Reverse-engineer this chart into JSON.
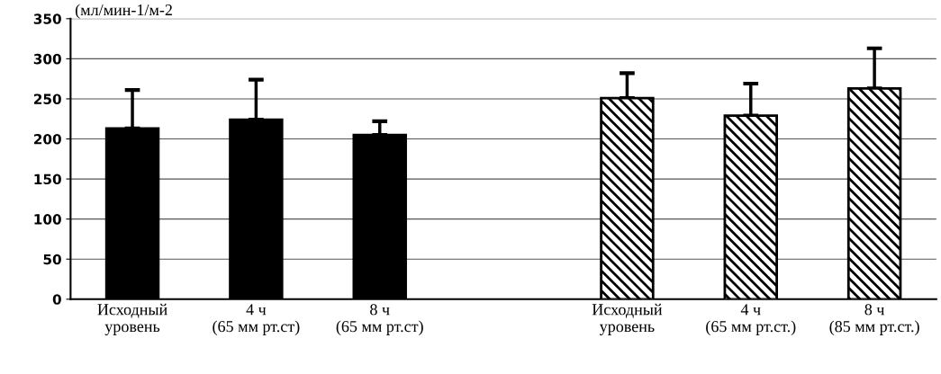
{
  "chart_data": {
    "type": "bar",
    "ylabel": "(мл/мин-1/м-2",
    "categories": [
      "Исходный\nуровень",
      "4 ч\n(65 мм рт.ст)",
      "8 ч\n(65 мм рт.ст)",
      null,
      "Исходный\nуровень",
      "4 ч\n(65 мм рт.ст.)",
      "8 ч\n(85 мм рт.ст.)"
    ],
    "series": [
      {
        "color": "#000000",
        "values": [
          213,
          224,
          205,
          null,
          null,
          null,
          null
        ],
        "errors": [
          48,
          50,
          17,
          null,
          null,
          null,
          null
        ]
      },
      {
        "color": "#000000",
        "values": [
          null,
          null,
          null,
          null,
          251,
          229,
          263
        ],
        "errors": [
          null,
          null,
          null,
          null,
          31,
          40,
          50
        ]
      }
    ],
    "ylim": [
      0,
      350
    ],
    "yticks": [
      0,
      50,
      100,
      150,
      200,
      250,
      300,
      350
    ],
    "grid": "y"
  }
}
